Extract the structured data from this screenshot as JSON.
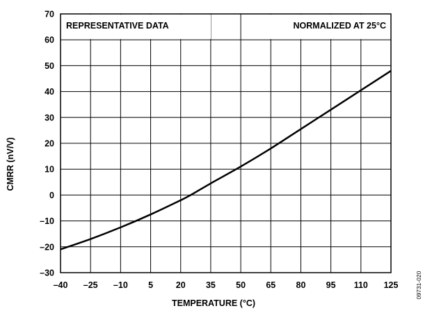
{
  "chart_data": {
    "type": "line",
    "title": "",
    "xlabel": "TEMPERATURE (°C)",
    "ylabel": "CMRR (nV/V)",
    "xlim": [
      -40,
      125
    ],
    "ylim": [
      -30,
      70
    ],
    "x_ticks": [
      -40,
      -25,
      -10,
      5,
      20,
      35,
      50,
      65,
      80,
      95,
      110,
      125
    ],
    "x_tick_labels": [
      "–40",
      "–25",
      "–10",
      "5",
      "20",
      "35",
      "50",
      "65",
      "80",
      "95",
      "110",
      "125"
    ],
    "y_ticks": [
      -30,
      -20,
      -10,
      0,
      10,
      20,
      30,
      40,
      50,
      60,
      70
    ],
    "y_tick_labels": [
      "–30",
      "–20",
      "–10",
      "0",
      "10",
      "20",
      "30",
      "40",
      "50",
      "60",
      "70"
    ],
    "grid": true,
    "annotations": {
      "left": "REPRESENTATIVE DATA",
      "right": "NORMALIZED AT 25°C"
    },
    "figure_id": "09731-020",
    "series": [
      {
        "x": [
          -40,
          -25,
          -10,
          5,
          20,
          25,
          35,
          50,
          65,
          80,
          95,
          110,
          125
        ],
        "y": [
          -21,
          -17,
          -12.5,
          -7.5,
          -2,
          0,
          4.5,
          11,
          18,
          25.5,
          33,
          40.5,
          48
        ]
      }
    ]
  }
}
